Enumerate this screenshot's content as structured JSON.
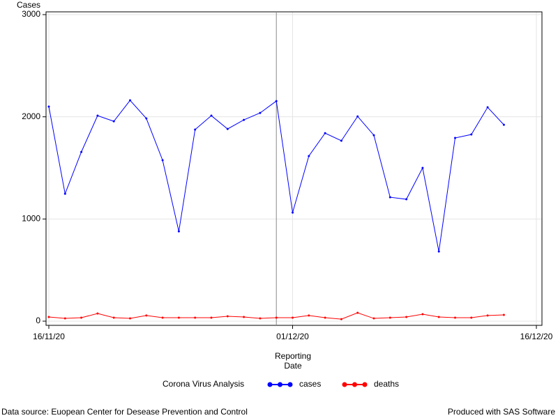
{
  "chart_data": {
    "type": "line",
    "ylabel": "Cases",
    "xlabel": "Reporting Date",
    "x": [
      "16/11/20",
      "17/11/20",
      "18/11/20",
      "19/11/20",
      "20/11/20",
      "21/11/20",
      "22/11/20",
      "23/11/20",
      "24/11/20",
      "25/11/20",
      "26/11/20",
      "27/11/20",
      "28/11/20",
      "29/11/20",
      "30/11/20",
      "01/12/20",
      "02/12/20",
      "03/12/20",
      "04/12/20",
      "05/12/20",
      "06/12/20",
      "07/12/20",
      "08/12/20",
      "09/12/20",
      "10/12/20",
      "11/12/20",
      "12/12/20",
      "13/12/20",
      "14/12/20"
    ],
    "series": [
      {
        "name": "cases",
        "color": "#0000ff",
        "values": [
          2100,
          1247,
          1656,
          2011,
          1956,
          2161,
          1984,
          1575,
          879,
          1875,
          2011,
          1881,
          1970,
          2038,
          2154,
          1063,
          1616,
          1840,
          1766,
          2004,
          1820,
          1213,
          1193,
          1500,
          682,
          1793,
          1827,
          2093,
          1922
        ]
      },
      {
        "name": "deaths",
        "color": "#ff0000",
        "values": [
          41,
          27,
          34,
          75,
          34,
          27,
          55,
          34,
          34,
          34,
          34,
          48,
          41,
          27,
          34,
          34,
          55,
          34,
          20,
          82,
          27,
          34,
          41,
          68,
          41,
          34,
          34,
          55,
          61
        ]
      }
    ],
    "xlim": [
      "16/11/20",
      "16/12/20"
    ],
    "xticks": [
      "16/11/20",
      "01/12/20",
      "16/12/20"
    ],
    "ylim": [
      0,
      3000
    ],
    "yticks": [
      0,
      1000,
      2000,
      3000
    ],
    "grid": true,
    "reference_line_x": "30/11/20",
    "legend_title": "Corona Virus Analysis",
    "legend_position": "bottom",
    "footnote_left": "Data source: Euopean Center for Desease Prevention and Control",
    "footnote_right": "Produced with SAS Software"
  }
}
